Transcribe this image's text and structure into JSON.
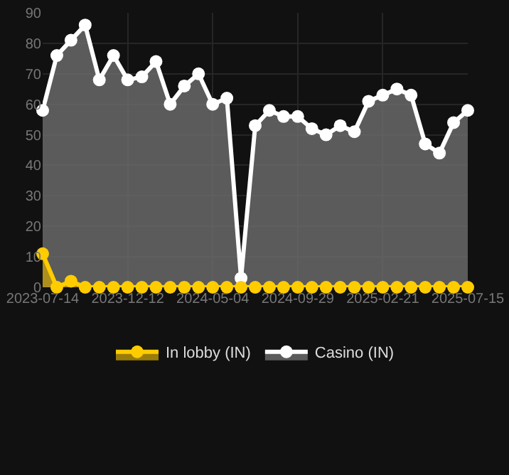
{
  "chart_data": {
    "type": "area",
    "categories": [
      "2023-07-14",
      null,
      null,
      null,
      null,
      null,
      "2023-12-12",
      null,
      null,
      null,
      null,
      null,
      "2024-05-04",
      null,
      null,
      null,
      null,
      null,
      "2024-09-29",
      null,
      null,
      null,
      null,
      null,
      "2025-02-21",
      null,
      null,
      null,
      null,
      null,
      "2025-07-15"
    ],
    "series": [
      {
        "name": "In lobby (IN)",
        "color": "#ffcc00",
        "values": [
          11,
          0,
          2,
          0,
          0,
          0,
          0,
          0,
          0,
          0,
          0,
          0,
          0,
          0,
          0,
          0,
          0,
          0,
          0,
          0,
          0,
          0,
          0,
          0,
          0,
          0,
          0,
          0,
          0,
          0,
          0
        ]
      },
      {
        "name": "Casino (IN)",
        "color": "#ffffff",
        "values": [
          58,
          76,
          81,
          86,
          68,
          76,
          68,
          69,
          74,
          60,
          66,
          70,
          60,
          62,
          3,
          53,
          58,
          56,
          56,
          52,
          50,
          53,
          51,
          61,
          63,
          65,
          63,
          47,
          44,
          54,
          58
        ]
      }
    ],
    "ylim": [
      0,
      90
    ],
    "yticks": [
      0,
      10,
      20,
      30,
      40,
      50,
      60,
      70,
      80,
      90
    ],
    "grid": true,
    "legend": "bottom",
    "marker": "circle",
    "line_style": "solid"
  }
}
